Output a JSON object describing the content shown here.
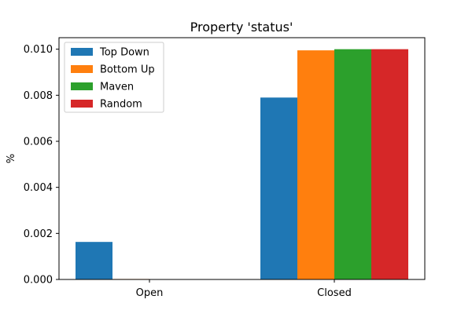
{
  "chart_data": {
    "type": "bar",
    "title": "Property 'status'",
    "xlabel": "",
    "ylabel": "%",
    "categories": [
      "Open",
      "Closed"
    ],
    "ylim": [
      0,
      0.0105
    ],
    "yticks": [
      "0.000",
      "0.002",
      "0.004",
      "0.006",
      "0.008",
      "0.010"
    ],
    "ytick_values": [
      0,
      0.002,
      0.004,
      0.006,
      0.008,
      0.01
    ],
    "grid": false,
    "legend_position": "top-left",
    "series": [
      {
        "name": "Top Down",
        "color": "#1f77b4",
        "values": [
          0.00163,
          0.0079
        ]
      },
      {
        "name": "Bottom Up",
        "color": "#ff7f0e",
        "values": [
          2e-05,
          0.00995
        ]
      },
      {
        "name": "Maven",
        "color": "#2ca02c",
        "values": [
          0.0,
          0.01
        ]
      },
      {
        "name": "Random",
        "color": "#d62728",
        "values": [
          0.0,
          0.01
        ]
      }
    ]
  }
}
